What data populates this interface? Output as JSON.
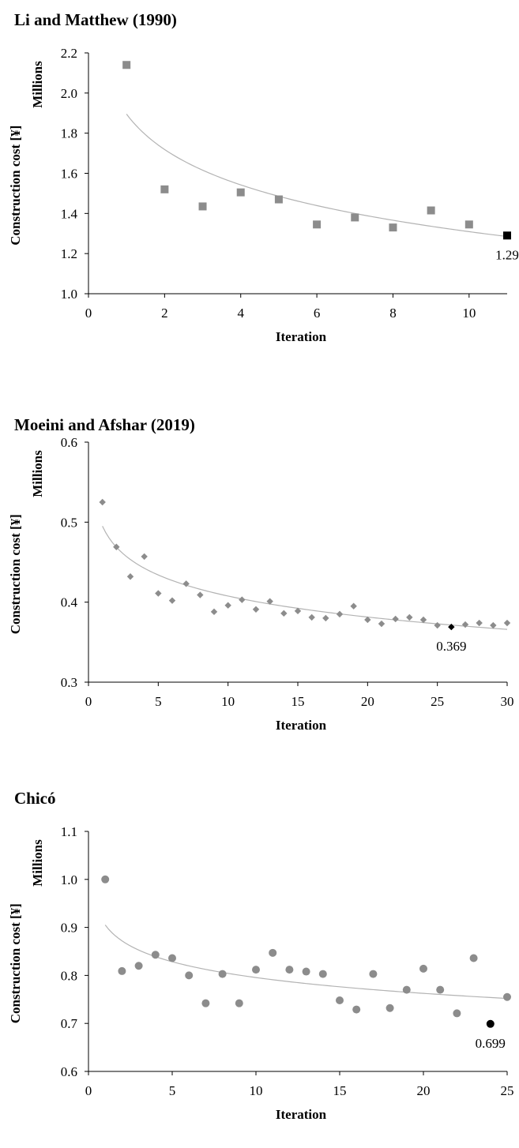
{
  "chart_data": [
    {
      "type": "scatter",
      "title": "Li and Matthew (1990)",
      "xlabel": "Iteration",
      "ylabel": "Construction cost [¥]",
      "unit_label": "Millions",
      "xlim": [
        0,
        11
      ],
      "ylim": [
        1.0,
        2.2
      ],
      "xticks": [
        "0",
        "2",
        "4",
        "6",
        "8",
        "10"
      ],
      "yticks": [
        "1.0",
        "1.2",
        "1.4",
        "1.6",
        "1.8",
        "2.0",
        "2.2"
      ],
      "marker": "square",
      "series": [
        {
          "x": [
            1,
            2,
            3,
            4,
            5,
            6,
            7,
            8,
            9,
            10,
            11
          ],
          "y": [
            2.14,
            1.52,
            1.435,
            1.505,
            1.47,
            1.345,
            1.38,
            1.33,
            1.415,
            1.345,
            1.29
          ]
        }
      ],
      "trendline": {
        "type": "logarithmic",
        "x": [
          1,
          11
        ],
        "y_start": 1.895,
        "y_end": 1.285
      },
      "highlight": {
        "x": 11,
        "y": 1.29,
        "label": "1.29"
      },
      "colors": {
        "marker": "#8c8c8c",
        "highlight": "#000000",
        "trend": "#b3b3b3"
      }
    },
    {
      "type": "scatter",
      "title": "Moeini and Afshar (2019)",
      "xlabel": "Iteration",
      "ylabel": "Construction cost [¥]",
      "unit_label": "Millions",
      "xlim": [
        0,
        30
      ],
      "ylim": [
        0.3,
        0.6
      ],
      "xticks": [
        "0",
        "5",
        "10",
        "15",
        "20",
        "25",
        "30"
      ],
      "yticks": [
        "0.3",
        "0.4",
        "0.5",
        "0.6"
      ],
      "marker": "diamond",
      "series": [
        {
          "x": [
            1,
            2,
            3,
            4,
            5,
            6,
            7,
            8,
            9,
            10,
            11,
            12,
            13,
            14,
            15,
            16,
            17,
            18,
            19,
            20,
            21,
            22,
            23,
            24,
            25,
            26,
            27,
            28,
            29,
            30
          ],
          "y": [
            0.525,
            0.469,
            0.432,
            0.457,
            0.411,
            0.402,
            0.423,
            0.409,
            0.388,
            0.396,
            0.403,
            0.391,
            0.401,
            0.386,
            0.389,
            0.381,
            0.38,
            0.385,
            0.395,
            0.378,
            0.373,
            0.379,
            0.381,
            0.378,
            0.371,
            0.369,
            0.372,
            0.374,
            0.371,
            0.374
          ]
        }
      ],
      "trendline": {
        "type": "logarithmic",
        "x": [
          1,
          30
        ],
        "y_start": 0.495,
        "y_end": 0.366
      },
      "highlight": {
        "x": 26,
        "y": 0.369,
        "label": "0.369"
      },
      "colors": {
        "marker": "#8c8c8c",
        "highlight": "#000000",
        "trend": "#b3b3b3"
      }
    },
    {
      "type": "scatter",
      "title": "Chicó",
      "xlabel": "Iteration",
      "ylabel": "Construction cost [¥]",
      "unit_label": "Millions",
      "xlim": [
        0,
        25
      ],
      "ylim": [
        0.6,
        1.1
      ],
      "xticks": [
        "0",
        "5",
        "10",
        "15",
        "20",
        "25"
      ],
      "yticks": [
        "0.6",
        "0.7",
        "0.8",
        "0.9",
        "1.0",
        "1.1"
      ],
      "marker": "circle",
      "series": [
        {
          "x": [
            1,
            2,
            3,
            4,
            5,
            6,
            7,
            8,
            9,
            10,
            11,
            12,
            13,
            14,
            15,
            16,
            17,
            18,
            19,
            20,
            21,
            22,
            23,
            24,
            25
          ],
          "y": [
            1.0,
            0.809,
            0.82,
            0.843,
            0.836,
            0.8,
            0.742,
            0.803,
            0.742,
            0.812,
            0.847,
            0.812,
            0.808,
            0.803,
            0.748,
            0.729,
            0.803,
            0.732,
            0.77,
            0.814,
            0.77,
            0.721,
            0.836,
            0.699,
            0.755
          ]
        }
      ],
      "trendline": {
        "type": "logarithmic",
        "x": [
          1,
          25
        ],
        "y_start": 0.905,
        "y_end": 0.752
      },
      "highlight": {
        "x": 24,
        "y": 0.699,
        "label": "0.699"
      },
      "colors": {
        "marker": "#8c8c8c",
        "highlight": "#000000",
        "trend": "#b3b3b3"
      }
    }
  ]
}
